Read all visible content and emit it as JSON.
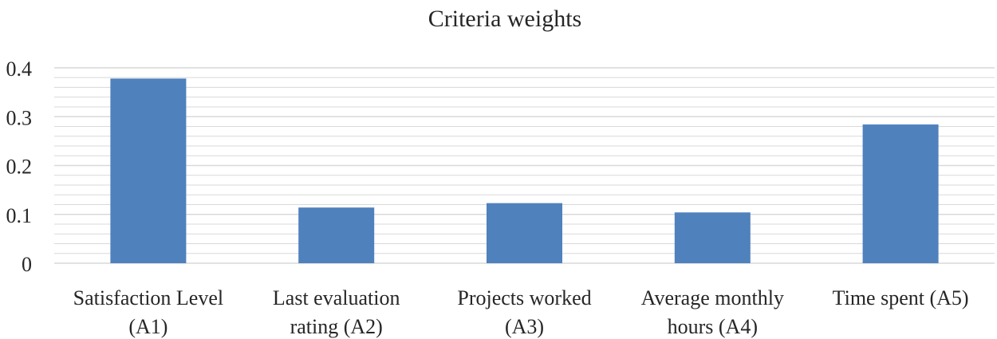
{
  "chart_data": {
    "type": "bar",
    "title": "Criteria weights",
    "categories": [
      [
        "Satisfaction Level",
        "(A1)"
      ],
      [
        "Last evaluation",
        "rating (A2)"
      ],
      [
        "Projects worked",
        "(A3)"
      ],
      [
        "Average monthly",
        "hours (A4)"
      ],
      [
        "Time spent (A5)"
      ]
    ],
    "values": [
      0.378,
      0.114,
      0.123,
      0.104,
      0.284
    ],
    "ylim": [
      0,
      0.4
    ],
    "yticks": [
      "0",
      "0.1",
      "0.2",
      "0.3",
      "0.4"
    ],
    "minor_gridlines": true,
    "bar_color": "#4f81bd",
    "grid_color": "#d9d9d9"
  }
}
